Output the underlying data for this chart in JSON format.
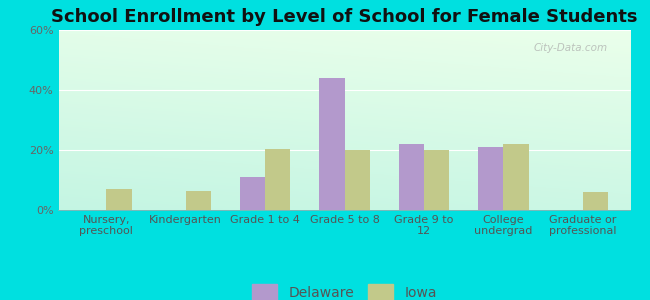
{
  "title": "School Enrollment by Level of School for Female Students",
  "categories": [
    "Nursery,\npreschool",
    "Kindergarten",
    "Grade 1 to 4",
    "Grade 5 to 8",
    "Grade 9 to\n12",
    "College\nundergrad",
    "Graduate or\nprofessional"
  ],
  "delaware": [
    0.0,
    0.0,
    11.0,
    44.0,
    22.0,
    21.0,
    0.0
  ],
  "iowa": [
    7.0,
    6.5,
    20.5,
    20.0,
    20.0,
    22.0,
    6.0
  ],
  "delaware_color": "#b399cc",
  "iowa_color": "#c2c98a",
  "bg_color": "#00e0e0",
  "ylim": [
    0,
    60
  ],
  "yticks": [
    0,
    20,
    40,
    60
  ],
  "ytick_labels": [
    "0%",
    "20%",
    "40%",
    "60%"
  ],
  "bar_width": 0.32,
  "title_fontsize": 13,
  "tick_fontsize": 8,
  "legend_fontsize": 10,
  "watermark": "City-Data.com"
}
